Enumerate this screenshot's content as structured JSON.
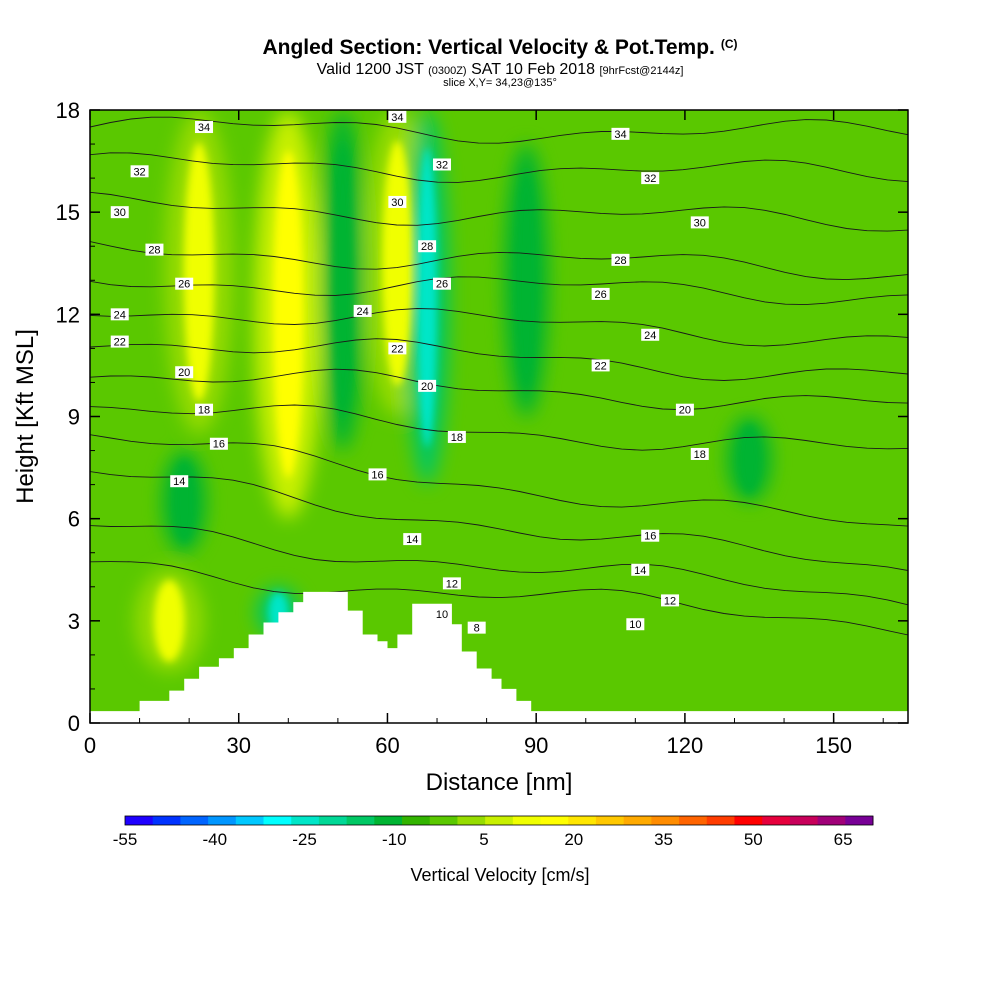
{
  "header": {
    "title": "Angled Section: Vertical Velocity & Pot.Temp.",
    "title_tag": "(C)",
    "valid_prefix": "Valid 1200 JST",
    "valid_z": "(0300Z)",
    "valid_date": "SAT 10 Feb 2018",
    "valid_fcst": "[9hrFcst@2144z]",
    "slice": "slice X,Y= 34,23@135°"
  },
  "chart_data": {
    "type": "heatmap",
    "xlabel": "Distance [nm]",
    "ylabel": "Height [Kft MSL]",
    "xlim": [
      0,
      165
    ],
    "ylim": [
      0,
      18
    ],
    "xticks": [
      0,
      30,
      60,
      90,
      120,
      150
    ],
    "yticks": [
      0,
      3,
      6,
      9,
      12,
      15,
      18
    ],
    "colorbar": {
      "label": "Vertical Velocity [cm/s]",
      "ticks": [
        -55,
        -40,
        -25,
        -10,
        5,
        20,
        35,
        50,
        65
      ],
      "range": [
        -55,
        70
      ],
      "step": 5,
      "colors": [
        "#1e00ff",
        "#0032ff",
        "#0064ff",
        "#0096ff",
        "#00c8ff",
        "#00ffff",
        "#00e6c8",
        "#00d896",
        "#00c864",
        "#00b432",
        "#32b400",
        "#5ac800",
        "#96dc00",
        "#c8f000",
        "#f0ff00",
        "#ffff00",
        "#ffe600",
        "#ffc800",
        "#ffaa00",
        "#ff8c00",
        "#ff6400",
        "#ff3c00",
        "#ff0000",
        "#e6003c",
        "#c8005a",
        "#a00078",
        "#780096"
      ]
    },
    "velocity_features": [
      {
        "kind": "updraft",
        "x": 40,
        "y_range": [
          6,
          18
        ],
        "value": 20
      },
      {
        "kind": "updraft",
        "x": 22,
        "y_range": [
          8.5,
          18
        ],
        "value": 15
      },
      {
        "kind": "updraft",
        "x": 62,
        "y_range": [
          9,
          18
        ],
        "value": 15
      },
      {
        "kind": "updraft",
        "x": 16,
        "y_range": [
          1.5,
          4.5
        ],
        "value": 15
      },
      {
        "kind": "downdraft",
        "x": 68,
        "y_range": [
          7,
          18
        ],
        "value": -25
      },
      {
        "kind": "downdraft",
        "x": 51,
        "y_range": [
          8,
          18
        ],
        "value": -10
      },
      {
        "kind": "downdraft",
        "x": 88,
        "y_range": [
          9,
          17
        ],
        "value": -10
      },
      {
        "kind": "downdraft",
        "x": 19,
        "y_range": [
          5,
          8
        ],
        "value": -10
      },
      {
        "kind": "downdraft",
        "x": 38,
        "y_range": [
          2.5,
          4
        ],
        "value": -25
      },
      {
        "kind": "downdraft",
        "x": 133,
        "y_range": [
          6.5,
          9
        ],
        "value": -10
      }
    ],
    "isentropes": [
      {
        "theta": 34,
        "y0": 17.5,
        "y1": 17.3
      },
      {
        "theta": 32,
        "y0": 16.4,
        "y1": 16.1
      },
      {
        "theta": 30,
        "y0": 15.2,
        "y1": 14.7
      },
      {
        "theta": 28,
        "y0": 13.9,
        "y1": 13.3
      },
      {
        "theta": 26,
        "y0": 13.0,
        "y1": 12.6
      },
      {
        "theta": 24,
        "y0": 12.2,
        "y1": 11.3
      },
      {
        "theta": 22,
        "y0": 11.3,
        "y1": 10.2
      },
      {
        "theta": 20,
        "y0": 10.3,
        "y1": 9.3
      },
      {
        "theta": 18,
        "y0": 9.3,
        "y1": 7.9
      },
      {
        "theta": 16,
        "y0": 8.4,
        "y1": 5.6
      },
      {
        "theta": 14,
        "y0": 7.3,
        "y1": 4.4
      },
      {
        "theta": 12,
        "y0": 5.7,
        "y1": 3.6
      },
      {
        "theta": 10,
        "y0": 4.6,
        "y1": 2.9
      }
    ],
    "contour_labels": [
      {
        "text": "34",
        "x": 23,
        "y": 17.5
      },
      {
        "text": "34",
        "x": 62,
        "y": 17.8
      },
      {
        "text": "34",
        "x": 107,
        "y": 17.3
      },
      {
        "text": "32",
        "x": 10,
        "y": 16.2
      },
      {
        "text": "32",
        "x": 71,
        "y": 16.4
      },
      {
        "text": "32",
        "x": 113,
        "y": 16.0
      },
      {
        "text": "30",
        "x": 6,
        "y": 15.0
      },
      {
        "text": "30",
        "x": 62,
        "y": 15.3
      },
      {
        "text": "30",
        "x": 123,
        "y": 14.7
      },
      {
        "text": "28",
        "x": 13,
        "y": 13.9
      },
      {
        "text": "28",
        "x": 68,
        "y": 14.0
      },
      {
        "text": "28",
        "x": 107,
        "y": 13.6
      },
      {
        "text": "26",
        "x": 19,
        "y": 12.9
      },
      {
        "text": "26",
        "x": 71,
        "y": 12.9
      },
      {
        "text": "26",
        "x": 103,
        "y": 12.6
      },
      {
        "text": "24",
        "x": 6,
        "y": 12.0
      },
      {
        "text": "24",
        "x": 55,
        "y": 12.1
      },
      {
        "text": "24",
        "x": 113,
        "y": 11.4
      },
      {
        "text": "22",
        "x": 6,
        "y": 11.2
      },
      {
        "text": "22",
        "x": 62,
        "y": 11.0
      },
      {
        "text": "22",
        "x": 103,
        "y": 10.5
      },
      {
        "text": "20",
        "x": 19,
        "y": 10.3
      },
      {
        "text": "20",
        "x": 68,
        "y": 9.9
      },
      {
        "text": "20",
        "x": 120,
        "y": 9.2
      },
      {
        "text": "18",
        "x": 23,
        "y": 9.2
      },
      {
        "text": "18",
        "x": 74,
        "y": 8.4
      },
      {
        "text": "18",
        "x": 123,
        "y": 7.9
      },
      {
        "text": "16",
        "x": 26,
        "y": 8.2
      },
      {
        "text": "16",
        "x": 58,
        "y": 7.3
      },
      {
        "text": "16",
        "x": 113,
        "y": 5.5
      },
      {
        "text": "14",
        "x": 18,
        "y": 7.1
      },
      {
        "text": "14",
        "x": 65,
        "y": 5.4
      },
      {
        "text": "14",
        "x": 111,
        "y": 4.5
      },
      {
        "text": "12",
        "x": 73,
        "y": 4.1
      },
      {
        "text": "12",
        "x": 117,
        "y": 3.6
      },
      {
        "text": "10",
        "x": 71,
        "y": 3.2
      },
      {
        "text": "10",
        "x": 110,
        "y": 2.9
      },
      {
        "text": "8",
        "x": 78,
        "y": 2.8
      }
    ]
  }
}
